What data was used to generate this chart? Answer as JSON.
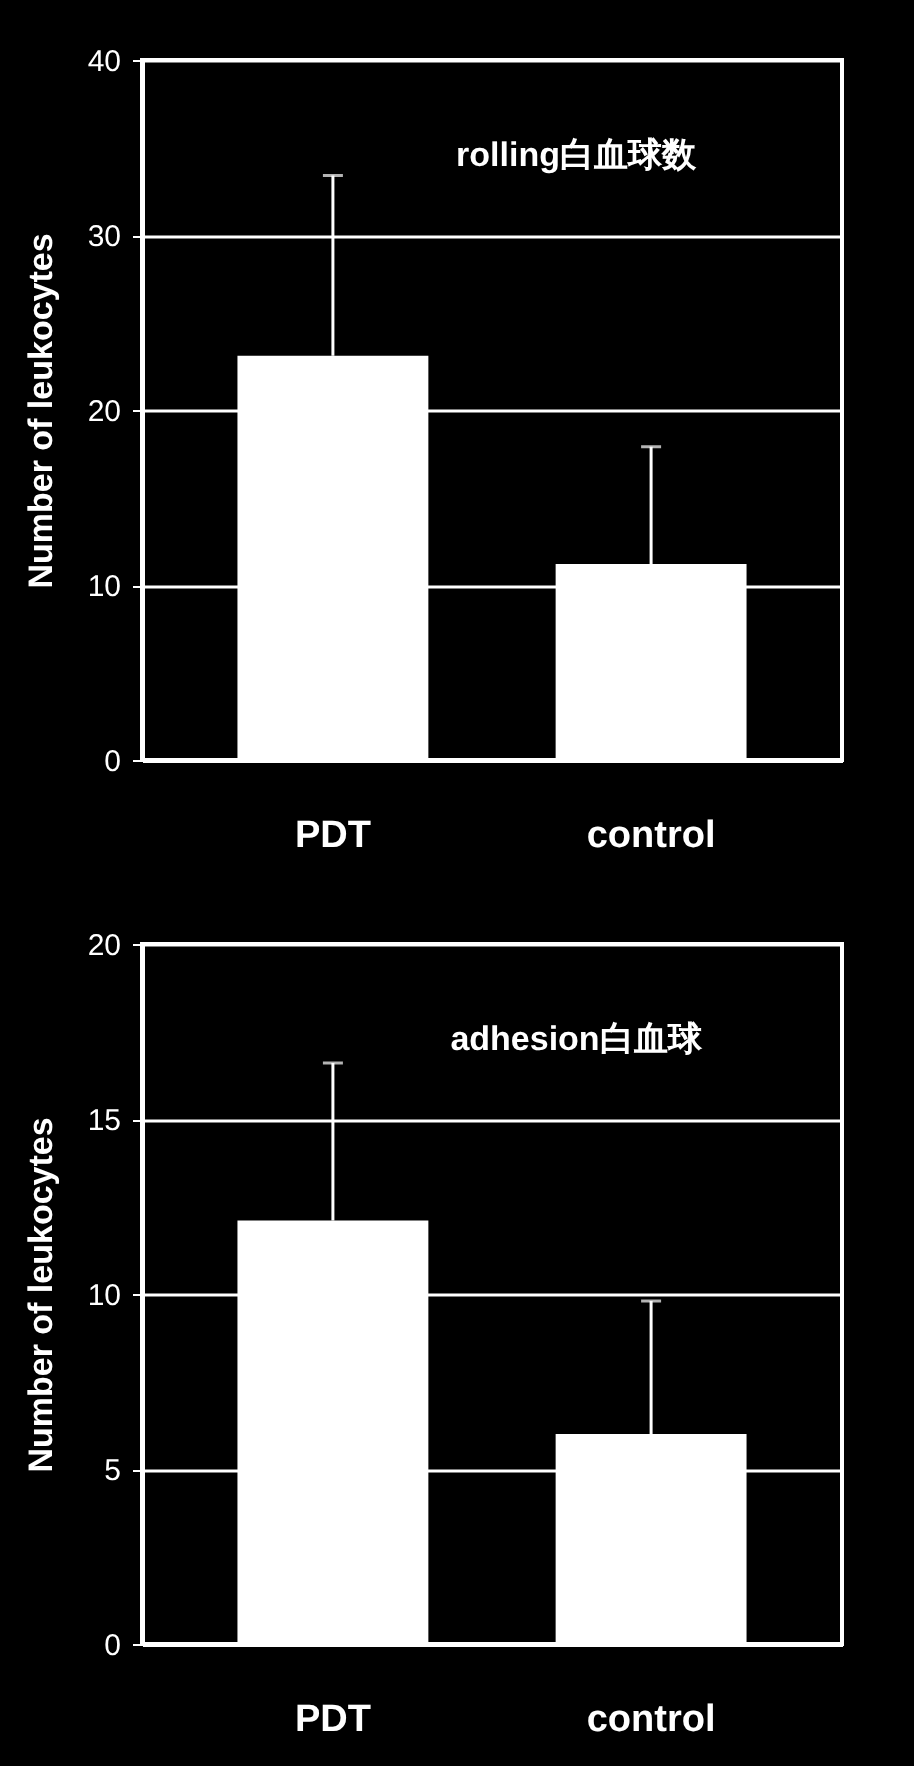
{
  "chart_data": [
    {
      "type": "bar",
      "annotations": [
        "rolling白血球数"
      ],
      "ylabel": "Number of leukocytes",
      "categories": [
        "PDT",
        "control"
      ],
      "values": [
        23.1,
        11.2
      ],
      "color": "#ffffff",
      "errors": [
        [
          23.1,
          33.4
        ],
        [
          11.2,
          17.9
        ]
      ],
      "ylim": [
        0,
        40
      ],
      "yticks": [
        0,
        10,
        20,
        30,
        40
      ],
      "grid": "y"
    },
    {
      "type": "bar",
      "annotations": [
        "adhesion白血球"
      ],
      "ylabel": "Number of leukocytes",
      "categories": [
        "PDT",
        "control"
      ],
      "values": [
        12.1,
        6.0
      ],
      "color": "#ffffff",
      "errors": [
        [
          12.1,
          16.6
        ],
        [
          6.0,
          9.8
        ]
      ],
      "ylim": [
        0,
        20
      ],
      "yticks": [
        0,
        5,
        10,
        15,
        20
      ],
      "grid": "y"
    }
  ]
}
